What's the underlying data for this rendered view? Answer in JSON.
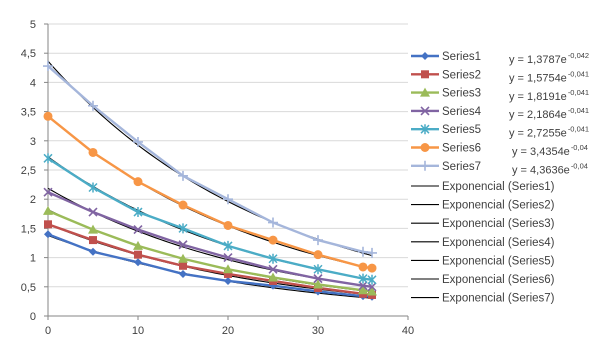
{
  "chart_data": {
    "type": "scatter",
    "title": "",
    "xlabel": "",
    "ylabel": "",
    "xlim": [
      0,
      40
    ],
    "ylim": [
      0,
      5
    ],
    "x_ticks": [
      "0",
      "10",
      "20",
      "30",
      "40"
    ],
    "y_ticks": [
      "0",
      "0,5",
      "1",
      "1,5",
      "2",
      "2,5",
      "3",
      "3,5",
      "4",
      "4,5",
      "5"
    ],
    "grid": "horizontal",
    "legend": "right",
    "x": [
      0,
      5,
      10,
      15,
      20,
      25,
      30,
      35,
      36
    ],
    "series": [
      {
        "name": "Series1",
        "color": "#4472C4",
        "marker": "diamond",
        "values": [
          1.4,
          1.1,
          0.92,
          0.72,
          0.6,
          0.52,
          0.42,
          0.34,
          0.33
        ]
      },
      {
        "name": "Series2",
        "color": "#C0504D",
        "marker": "square",
        "values": [
          1.57,
          1.3,
          1.05,
          0.86,
          0.72,
          0.6,
          0.48,
          0.38,
          0.36
        ]
      },
      {
        "name": "Series3",
        "color": "#9BBB59",
        "marker": "triangle",
        "values": [
          1.8,
          1.48,
          1.2,
          0.98,
          0.8,
          0.66,
          0.54,
          0.44,
          0.42
        ]
      },
      {
        "name": "Series4",
        "color": "#8064A2",
        "marker": "x",
        "values": [
          2.12,
          1.78,
          1.48,
          1.22,
          1.0,
          0.8,
          0.64,
          0.52,
          0.5
        ]
      },
      {
        "name": "Series5",
        "color": "#4BACC6",
        "marker": "star",
        "values": [
          2.7,
          2.2,
          1.78,
          1.5,
          1.2,
          0.98,
          0.8,
          0.64,
          0.62
        ]
      },
      {
        "name": "Series6",
        "color": "#F79646",
        "marker": "circle",
        "values": [
          3.42,
          2.8,
          2.3,
          1.9,
          1.55,
          1.3,
          1.05,
          0.84,
          0.82
        ]
      },
      {
        "name": "Series7",
        "color": "#A5B6DB",
        "marker": "plus",
        "values": [
          4.28,
          3.6,
          2.98,
          2.4,
          2.0,
          1.6,
          1.3,
          1.1,
          1.08
        ]
      }
    ],
    "trendlines": [
      {
        "name": "Exponencial (Series1)",
        "a": 1.3787,
        "b": 0.042,
        "equation": "y = 1,3787e",
        "exponent": "-0,042"
      },
      {
        "name": "Exponencial (Series2)",
        "a": 1.5754,
        "b": 0.041,
        "equation": "y = 1,5754e",
        "exponent": "-0,041"
      },
      {
        "name": "Exponencial (Series3)",
        "a": 1.8191,
        "b": 0.041,
        "equation": "y = 1,8191e",
        "exponent": "-0,041"
      },
      {
        "name": "Exponencial (Series4)",
        "a": 2.1864,
        "b": 0.041,
        "equation": "y = 2,1864e",
        "exponent": "-0,041"
      },
      {
        "name": "Exponencial (Series5)",
        "a": 2.7255,
        "b": 0.041,
        "equation": "y = 2,7255e",
        "exponent": "-0,041"
      },
      {
        "name": "Exponencial (Series6)",
        "a": 3.4354,
        "b": 0.04,
        "equation": "y = 3,4354e",
        "exponent": "-0,04"
      },
      {
        "name": "Exponencial (Series7)",
        "a": 4.3636,
        "b": 0.04,
        "equation": "y = 4,3636e",
        "exponent": "-0,04"
      }
    ]
  }
}
